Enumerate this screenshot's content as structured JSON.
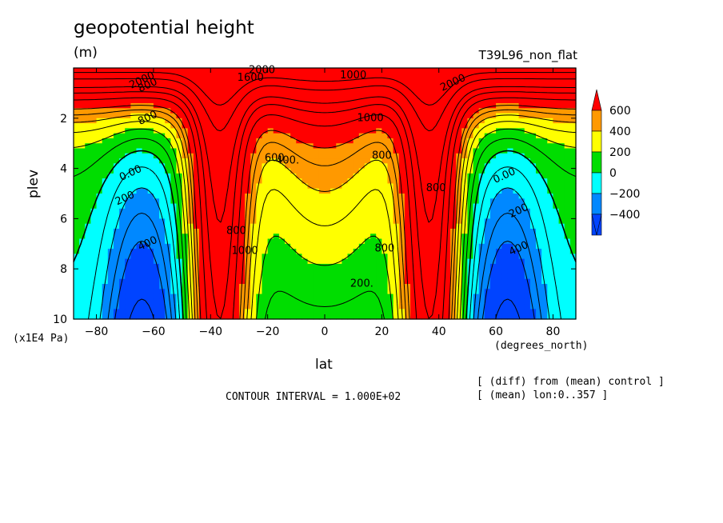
{
  "header": {
    "title": "geopotential height",
    "units": "(m)",
    "run": "T39L96_non_flat"
  },
  "footer": {
    "contour_interval": "CONTOUR INTERVAL = 1.000E+02",
    "note1": "[ (diff) from (mean) control ]",
    "note2": "[ (mean) lon:0..357 ]"
  },
  "chart_data": {
    "type": "heatmap",
    "title": "geopotential height",
    "units": "(m)",
    "xlabel": "lat",
    "x_unit": "(degrees_north)",
    "ylabel": "plev",
    "y_unit": "(x1E4 Pa)",
    "xlim": [
      -88,
      88
    ],
    "ylim": [
      10,
      0
    ],
    "x_ticks": [
      -80,
      -60,
      -40,
      -20,
      0,
      20,
      40,
      60,
      80
    ],
    "y_ticks": [
      2,
      4,
      6,
      8,
      10
    ],
    "contour_interval": 100,
    "color_levels": [
      {
        "label": "600",
        "color": "#ff0000"
      },
      {
        "label": "400",
        "color": "#ff9900"
      },
      {
        "label": "200",
        "color": "#ffff00"
      },
      {
        "label": "0",
        "color": "#00dd00"
      },
      {
        "label": "-200",
        "color": "#00ffff"
      },
      {
        "label": "-400",
        "color": "#0088ff"
      }
    ],
    "below_color": "#0044ff",
    "above_color": "#ff0000",
    "contour_labels": [
      {
        "text": "2000",
        "x": -64,
        "y": 0.5
      },
      {
        "text": "800",
        "x": -62,
        "y": 0.7
      },
      {
        "text": "2000",
        "x": -22,
        "y": 0.1
      },
      {
        "text": "1600",
        "x": -26,
        "y": 0.4
      },
      {
        "text": "1000",
        "x": 10,
        "y": 0.3
      },
      {
        "text": "2000",
        "x": 45,
        "y": 0.6
      },
      {
        "text": "800",
        "x": -62,
        "y": 2.0
      },
      {
        "text": "1000",
        "x": 16,
        "y": 2.0
      },
      {
        "text": "800",
        "x": 20,
        "y": 3.5
      },
      {
        "text": "400.",
        "x": -13,
        "y": 3.7
      },
      {
        "text": "600.",
        "x": -17,
        "y": 3.6
      },
      {
        "text": "0.00",
        "x": -68,
        "y": 4.2
      },
      {
        "text": "200",
        "x": -70,
        "y": 5.2
      },
      {
        "text": "400",
        "x": -62,
        "y": 7.0
      },
      {
        "text": "800",
        "x": -31,
        "y": 6.5
      },
      {
        "text": "1000",
        "x": -28,
        "y": 7.3
      },
      {
        "text": "800",
        "x": 21,
        "y": 7.2
      },
      {
        "text": "200.",
        "x": 13,
        "y": 8.6
      },
      {
        "text": "800",
        "x": 39,
        "y": 4.8
      },
      {
        "text": "0.00",
        "x": 63,
        "y": 4.3
      },
      {
        "text": "200",
        "x": 68,
        "y": 5.7
      },
      {
        "text": "400",
        "x": 68,
        "y": 7.2
      }
    ]
  }
}
